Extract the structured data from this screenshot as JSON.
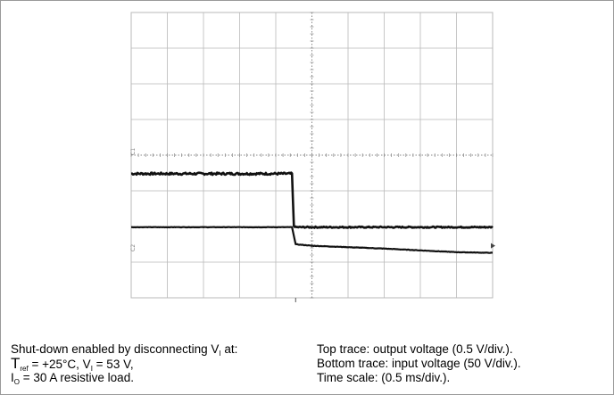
{
  "chart_data": {
    "type": "line",
    "title": "",
    "xlabel": "",
    "ylabel": "",
    "divisions": {
      "x": 10,
      "y": 8,
      "minor_per_div": 5
    },
    "grid": true,
    "channel_markers": [
      "C1",
      "C2"
    ],
    "series": [
      {
        "name": "Top trace: output voltage",
        "volts_per_div": 0.5,
        "x_div": [
          0,
          4.45,
          4.5,
          4.55,
          10
        ],
        "y_div": [
          3.48,
          3.48,
          2.02,
          1.98,
          1.98
        ],
        "noise_div": 0.03
      },
      {
        "name": "Bottom trace: input voltage",
        "volts_per_div": 50,
        "x_div": [
          0,
          4.45,
          4.55,
          5.0,
          7.0,
          9.0,
          10
        ],
        "y_div": [
          1.98,
          1.98,
          1.5,
          1.46,
          1.38,
          1.28,
          1.26
        ],
        "noise_div": 0.01
      }
    ],
    "time_scale_ms_per_div": 0.5
  },
  "caption_left": {
    "line1_a": "Shut-down enabled by disconnecting V",
    "line1_sub": "I",
    "line1_b": " at:",
    "line2_a": "T",
    "line2_sub1": "ref",
    "line2_b": " = +25°C, V",
    "line2_sub2": "I",
    "line2_c": " = 53 V,",
    "line3_a": "I",
    "line3_sub": "O",
    "line3_b": " = 30 A resistive load."
  },
  "caption_right": {
    "line1": "Top trace: output voltage (0.5 V/div.).",
    "line2": "Bottom trace: input voltage (50 V/div.).",
    "line3": "Time scale: (0.5 ms/div.)."
  },
  "colors": {
    "trace": "#111111",
    "grid_major": "#b9b9b9",
    "grid_minor": "#cfcfcf",
    "center": "#8a8a8a"
  }
}
